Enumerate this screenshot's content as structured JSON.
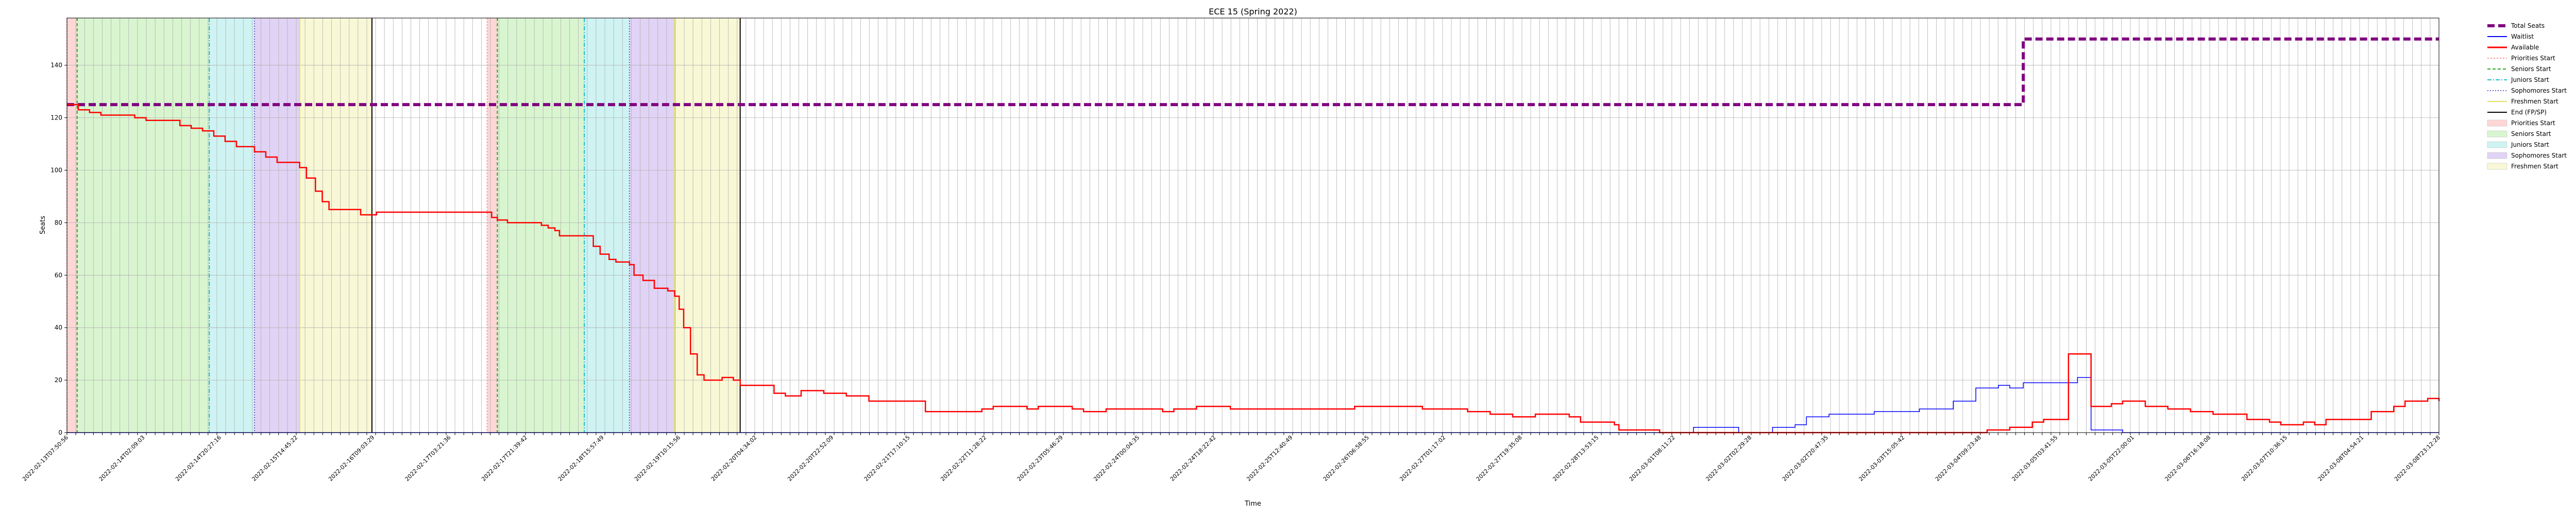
{
  "chart_data": {
    "type": "line",
    "title": "ECE 15 (Spring 2022)",
    "xlabel": "Time",
    "ylabel": "Seats",
    "ylim": [
      0,
      158
    ],
    "y_ticks": [
      0,
      20,
      40,
      60,
      80,
      100,
      120,
      140
    ],
    "x_tick_count": 270,
    "x_tick_labels": [
      "2022-02-13T07:50:56",
      "2022-02-14T02:09:03",
      "2022-02-14T20:27:16",
      "2022-02-15T14:45:22",
      "2022-02-16T09:03:29",
      "2022-02-17T03:21:36",
      "2022-02-17T21:39:42",
      "2022-02-18T15:57:49",
      "2022-02-19T10:15:56",
      "2022-02-20T04:34:02",
      "2022-02-20T22:52:09",
      "2022-02-21T17:10:15",
      "2022-02-22T11:28:22",
      "2022-02-23T05:46:29",
      "2022-02-24T00:04:35",
      "2022-02-24T18:22:42",
      "2022-02-25T12:40:49",
      "2022-02-26T06:58:55",
      "2022-02-27T01:17:02",
      "2022-02-27T19:35:08",
      "2022-02-28T13:53:15",
      "2022-03-01T08:11:22",
      "2022-03-02T02:29:28",
      "2022-03-02T20:47:35",
      "2022-03-03T15:05:42",
      "2022-03-04T09:23:48",
      "2022-03-05T03:41:55",
      "2022-03-05T22:00:01",
      "2022-03-06T16:18:08",
      "2022-03-07T10:36:15",
      "2022-03-08T04:54:21",
      "2022-03-08T23:12:28"
    ],
    "grid": true,
    "legend_position": "outside-right",
    "legend": [
      {
        "label": "Total Seats",
        "kind": "line",
        "color": "#800080",
        "dash": "14,7",
        "width": 6
      },
      {
        "label": "Waitlist",
        "kind": "line",
        "color": "#0000ff",
        "dash": "",
        "width": 2
      },
      {
        "label": "Available",
        "kind": "line",
        "color": "#ff0000",
        "dash": "",
        "width": 3
      },
      {
        "label": "Priorities Start",
        "kind": "line",
        "color": "#ff9999",
        "dash": "3,3",
        "width": 2
      },
      {
        "label": "Seniors Start",
        "kind": "line",
        "color": "#22aa22",
        "dash": "6,4",
        "width": 2
      },
      {
        "label": "Juniors Start",
        "kind": "line",
        "color": "#17becf",
        "dash": "8,3,2,3",
        "width": 2
      },
      {
        "label": "Sophomores Start",
        "kind": "line",
        "color": "#6a5acd",
        "dash": "2,3",
        "width": 2
      },
      {
        "label": "Freshmen Start",
        "kind": "line",
        "color": "#e0e060",
        "dash": "",
        "width": 2
      },
      {
        "label": "End (FP/SP)",
        "kind": "line",
        "color": "#000000",
        "dash": "",
        "width": 2
      },
      {
        "label": "Priorities Start",
        "kind": "patch",
        "color": "#ffd6d6"
      },
      {
        "label": "Seniors Start",
        "kind": "patch",
        "color": "#d8f5cf"
      },
      {
        "label": "Juniors Start",
        "kind": "patch",
        "color": "#cff3f3"
      },
      {
        "label": "Sophomores Start",
        "kind": "patch",
        "color": "#e0d3f5"
      },
      {
        "label": "Freshmen Start",
        "kind": "patch",
        "color": "#f9f8d6"
      }
    ],
    "shaded_regions": [
      {
        "from": 0.0,
        "to": 0.45,
        "color": "#ffd6d6"
      },
      {
        "from": 0.45,
        "to": 6.3,
        "color": "#d8f5cf"
      },
      {
        "from": 6.3,
        "to": 8.3,
        "color": "#cff3f3"
      },
      {
        "from": 8.3,
        "to": 10.3,
        "color": "#e0d3f5"
      },
      {
        "from": 10.3,
        "to": 13.5,
        "color": "#f9f8d6"
      },
      {
        "from": 18.6,
        "to": 19.05,
        "color": "#ffd6d6"
      },
      {
        "from": 19.05,
        "to": 22.9,
        "color": "#d8f5cf"
      },
      {
        "from": 22.9,
        "to": 24.9,
        "color": "#cff3f3"
      },
      {
        "from": 24.9,
        "to": 26.9,
        "color": "#e0d3f5"
      },
      {
        "from": 26.9,
        "to": 29.8,
        "color": "#f9f8d6"
      }
    ],
    "vertical_markers": [
      {
        "x": 0.0,
        "color": "#ff9999",
        "dash": "3,3"
      },
      {
        "x": 0.45,
        "color": "#22aa22",
        "dash": "6,4"
      },
      {
        "x": 6.3,
        "color": "#17becf",
        "dash": "8,3,2,3"
      },
      {
        "x": 8.3,
        "color": "#6a5acd",
        "dash": "2,3"
      },
      {
        "x": 10.3,
        "color": "#e0e060",
        "dash": ""
      },
      {
        "x": 13.5,
        "color": "#000000",
        "dash": ""
      },
      {
        "x": 18.6,
        "color": "#ff9999",
        "dash": "3,3"
      },
      {
        "x": 19.05,
        "color": "#22aa22",
        "dash": "6,4"
      },
      {
        "x": 22.9,
        "color": "#17becf",
        "dash": "8,3,2,3"
      },
      {
        "x": 24.9,
        "color": "#6a5acd",
        "dash": "2,3"
      },
      {
        "x": 26.9,
        "color": "#e0e060",
        "dash": ""
      },
      {
        "x": 29.8,
        "color": "#000000",
        "dash": ""
      }
    ],
    "series": [
      {
        "name": "Total Seats",
        "color": "#800080",
        "dash": "14,7",
        "width": 6,
        "points": [
          [
            0,
            125
          ],
          [
            86.6,
            125
          ],
          [
            86.6,
            150
          ],
          [
            105,
            150
          ]
        ]
      },
      {
        "name": "Waitlist",
        "color": "#0000ff",
        "dash": "",
        "width": 1.5,
        "points": [
          [
            0,
            0
          ],
          [
            71.5,
            0
          ],
          [
            72.0,
            2
          ],
          [
            73.5,
            2
          ],
          [
            74.0,
            0
          ],
          [
            75.0,
            0
          ],
          [
            75.5,
            2
          ],
          [
            76.5,
            3
          ],
          [
            77.0,
            6
          ],
          [
            78.0,
            7
          ],
          [
            80.0,
            8
          ],
          [
            82.0,
            9
          ],
          [
            83.5,
            12
          ],
          [
            84.5,
            17
          ],
          [
            85.5,
            18
          ],
          [
            86.0,
            17
          ],
          [
            86.6,
            19
          ],
          [
            88.0,
            19
          ],
          [
            89.0,
            21
          ],
          [
            89.6,
            21
          ],
          [
            89.6,
            1
          ],
          [
            90.8,
            1
          ],
          [
            91.0,
            0
          ],
          [
            105,
            0
          ]
        ]
      },
      {
        "name": "Available",
        "color": "#ff0000",
        "dash": "",
        "width": 2.5,
        "points": [
          [
            0,
            125
          ],
          [
            0.5,
            123
          ],
          [
            1.0,
            122
          ],
          [
            1.5,
            121
          ],
          [
            3.0,
            120
          ],
          [
            3.5,
            119
          ],
          [
            5.0,
            117
          ],
          [
            5.5,
            116
          ],
          [
            6.0,
            115
          ],
          [
            6.3,
            115
          ],
          [
            6.5,
            113
          ],
          [
            7.0,
            111
          ],
          [
            7.5,
            109
          ],
          [
            8.3,
            107
          ],
          [
            8.8,
            105
          ],
          [
            9.3,
            103
          ],
          [
            10.3,
            101
          ],
          [
            10.6,
            97
          ],
          [
            11.0,
            92
          ],
          [
            11.3,
            88
          ],
          [
            11.6,
            85
          ],
          [
            12.8,
            85
          ],
          [
            13.0,
            83
          ],
          [
            13.5,
            83
          ],
          [
            13.7,
            84
          ],
          [
            18.6,
            84
          ],
          [
            18.8,
            82
          ],
          [
            19.05,
            81
          ],
          [
            19.5,
            80
          ],
          [
            20.8,
            80
          ],
          [
            21.0,
            79
          ],
          [
            21.3,
            78
          ],
          [
            21.6,
            77
          ],
          [
            21.8,
            75
          ],
          [
            22.9,
            75
          ],
          [
            23.3,
            71
          ],
          [
            23.6,
            68
          ],
          [
            24.0,
            66
          ],
          [
            24.3,
            65
          ],
          [
            24.9,
            64
          ],
          [
            25.1,
            60
          ],
          [
            25.5,
            58
          ],
          [
            26.0,
            55
          ],
          [
            26.6,
            54
          ],
          [
            26.9,
            52
          ],
          [
            27.1,
            47
          ],
          [
            27.3,
            40
          ],
          [
            27.6,
            30
          ],
          [
            27.9,
            22
          ],
          [
            28.2,
            20
          ],
          [
            29.0,
            21
          ],
          [
            29.5,
            20
          ],
          [
            29.8,
            18
          ],
          [
            31.0,
            18
          ],
          [
            31.3,
            15
          ],
          [
            31.8,
            14
          ],
          [
            32.5,
            16
          ],
          [
            33.5,
            15
          ],
          [
            34.5,
            14
          ],
          [
            35.5,
            12
          ],
          [
            37.5,
            12
          ],
          [
            38.0,
            8
          ],
          [
            40.5,
            9
          ],
          [
            41.0,
            10
          ],
          [
            42.5,
            9
          ],
          [
            43.0,
            10
          ],
          [
            44.5,
            9
          ],
          [
            45.0,
            8
          ],
          [
            46.0,
            9
          ],
          [
            48.5,
            8
          ],
          [
            49.0,
            9
          ],
          [
            50.0,
            10
          ],
          [
            51.5,
            9
          ],
          [
            52.0,
            9
          ],
          [
            57.0,
            10
          ],
          [
            60.0,
            9
          ],
          [
            62.0,
            8
          ],
          [
            63.0,
            7
          ],
          [
            64.0,
            6
          ],
          [
            65.0,
            7
          ],
          [
            66.5,
            6
          ],
          [
            67.0,
            4
          ],
          [
            68.5,
            3
          ],
          [
            68.7,
            1
          ],
          [
            70.0,
            1
          ],
          [
            70.5,
            0
          ],
          [
            78.0,
            0
          ],
          [
            84.0,
            0
          ],
          [
            85.0,
            1
          ],
          [
            86.0,
            2
          ],
          [
            87.0,
            4
          ],
          [
            87.5,
            5
          ],
          [
            88.5,
            5
          ],
          [
            88.6,
            30
          ],
          [
            89.6,
            30
          ],
          [
            89.6,
            10
          ],
          [
            90.5,
            11
          ],
          [
            91.0,
            12
          ],
          [
            92.0,
            10
          ],
          [
            93.0,
            9
          ],
          [
            94.0,
            8
          ],
          [
            95.0,
            7
          ],
          [
            96.0,
            7
          ],
          [
            96.5,
            5
          ],
          [
            97.5,
            4
          ],
          [
            98.0,
            3
          ],
          [
            99.0,
            4
          ],
          [
            99.5,
            3
          ],
          [
            100.0,
            5
          ],
          [
            101.5,
            5
          ],
          [
            102.0,
            8
          ],
          [
            103.0,
            10
          ],
          [
            103.5,
            12
          ],
          [
            104.5,
            13
          ],
          [
            105.0,
            12
          ]
        ]
      }
    ]
  }
}
